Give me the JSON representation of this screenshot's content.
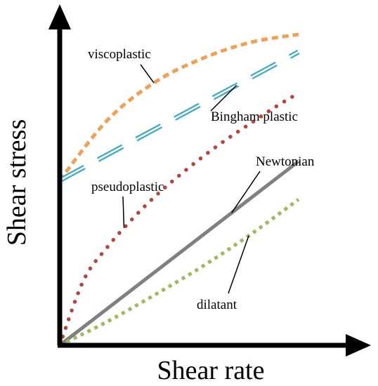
{
  "chart_data": {
    "type": "line",
    "xlabel": "Shear rate",
    "ylabel": "Shear stress",
    "xlim": [
      0,
      10
    ],
    "ylim": [
      0,
      10
    ],
    "grid": false,
    "legend": "none",
    "series": [
      {
        "name": "viscoplastic",
        "color": "#F0A055",
        "dash": "dashed-short",
        "x": [
          0,
          2,
          4,
          6,
          8,
          10
        ],
        "y": [
          5.2,
          7.1,
          8.3,
          9.05,
          9.55,
          9.8
        ]
      },
      {
        "name": "Bingham plastic",
        "color": "#3FA8C8",
        "dash": "dashed-long-double",
        "x": [
          0,
          10
        ],
        "y": [
          5.2,
          9.25
        ]
      },
      {
        "name": "pseudoplastic",
        "color": "#B8433A",
        "dash": "dotted-round",
        "x": [
          0,
          1,
          2,
          3,
          4,
          5,
          6,
          7,
          8,
          9,
          10
        ],
        "y": [
          0,
          2.05,
          3.1,
          3.95,
          4.7,
          5.35,
          5.95,
          6.5,
          7.0,
          7.5,
          7.95
        ]
      },
      {
        "name": "Newtonian",
        "color": "#808080",
        "dash": "solid",
        "x": [
          0,
          10
        ],
        "y": [
          0,
          5.8
        ]
      },
      {
        "name": "dilatant",
        "color": "#9DBA5C",
        "dash": "dotted-square",
        "x": [
          0,
          2,
          4,
          6,
          8,
          10
        ],
        "y": [
          0,
          0.75,
          1.6,
          2.5,
          3.5,
          4.6
        ]
      }
    ],
    "annotations": [
      {
        "text": "viscoplastic",
        "series": "viscoplastic"
      },
      {
        "text": "Bingham plastic",
        "series": "Bingham plastic"
      },
      {
        "text": "pseudoplastic",
        "series": "pseudoplastic"
      },
      {
        "text": "Newtonian",
        "series": "Newtonian"
      },
      {
        "text": "dilatant",
        "series": "dilatant"
      }
    ]
  }
}
